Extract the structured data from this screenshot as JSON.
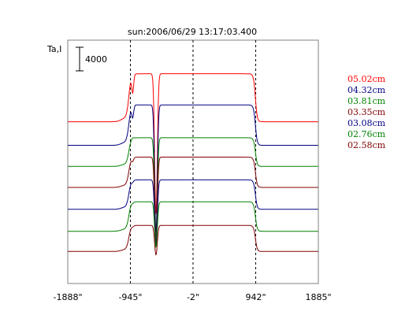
{
  "chart_data": {
    "type": "line",
    "title": "sun:2006/06/29 13:17:03.400",
    "ylabel": "Ta,I",
    "scale_bar_label": "4000",
    "scale_bar_value": 4000,
    "xlim": [
      -1888,
      1885
    ],
    "x_tick_labels": [
      "-1888\"",
      "-945\"",
      "-2\"",
      "942\"",
      "1885\""
    ],
    "x_tick_values": [
      -1888,
      -945,
      -2,
      942,
      1885
    ],
    "reference_lines_x": [
      -945,
      -2,
      942
    ],
    "series": [
      {
        "name": "05.02cm",
        "color": "#ff0000",
        "offset": 19200,
        "plateau": 5700,
        "peak_limb": 22800,
        "peak_mid": 8200
      },
      {
        "name": "04.32cm",
        "color": "#000080",
        "offset": 16400,
        "plateau": 4800,
        "peak_limb": 19800,
        "peak_mid": 6100
      },
      {
        "name": "03.81cm",
        "color": "#008000",
        "offset": 13900,
        "plateau": 3400,
        "peak_limb": 17400,
        "peak_mid": 5200
      },
      {
        "name": "03.35cm",
        "color": "#800000",
        "offset": 11400,
        "plateau": 3600,
        "peak_limb": 14600,
        "peak_mid": 4900
      },
      {
        "name": "03.08cm",
        "color": "#000080",
        "offset": 8800,
        "plateau": 3500,
        "peak_limb": 12100,
        "peak_mid": 4500
      },
      {
        "name": "02.76cm",
        "color": "#008000",
        "offset": 6200,
        "plateau": 3500,
        "peak_limb": 9600,
        "peak_mid": 4300
      },
      {
        "name": "02.58cm",
        "color": "#800000",
        "offset": 3800,
        "plateau": 3100,
        "peak_limb": 6800,
        "peak_mid": 3400
      }
    ]
  }
}
